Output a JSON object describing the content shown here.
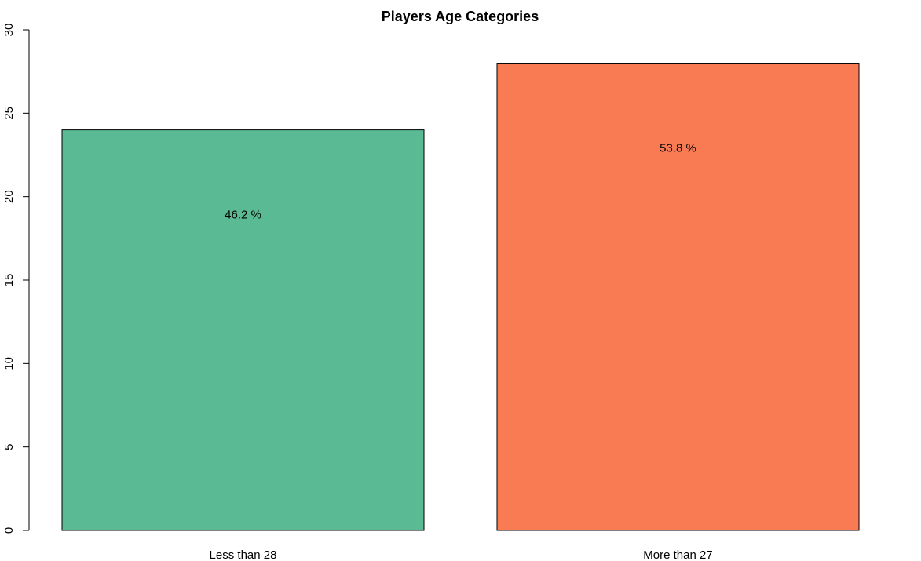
{
  "chart_data": {
    "type": "bar",
    "title": "Players Age Categories",
    "xlabel": "",
    "ylabel": "",
    "categories": [
      "Less than 28",
      "More than 27"
    ],
    "values": [
      24,
      28
    ],
    "data_labels": [
      "46.2 %",
      "53.8 %"
    ],
    "colors": [
      "#59BA94",
      "#F97B53"
    ],
    "ylim": [
      0,
      30
    ],
    "yticks": [
      0,
      5,
      10,
      15,
      20,
      25,
      30
    ],
    "grid": false,
    "legend": "none"
  }
}
